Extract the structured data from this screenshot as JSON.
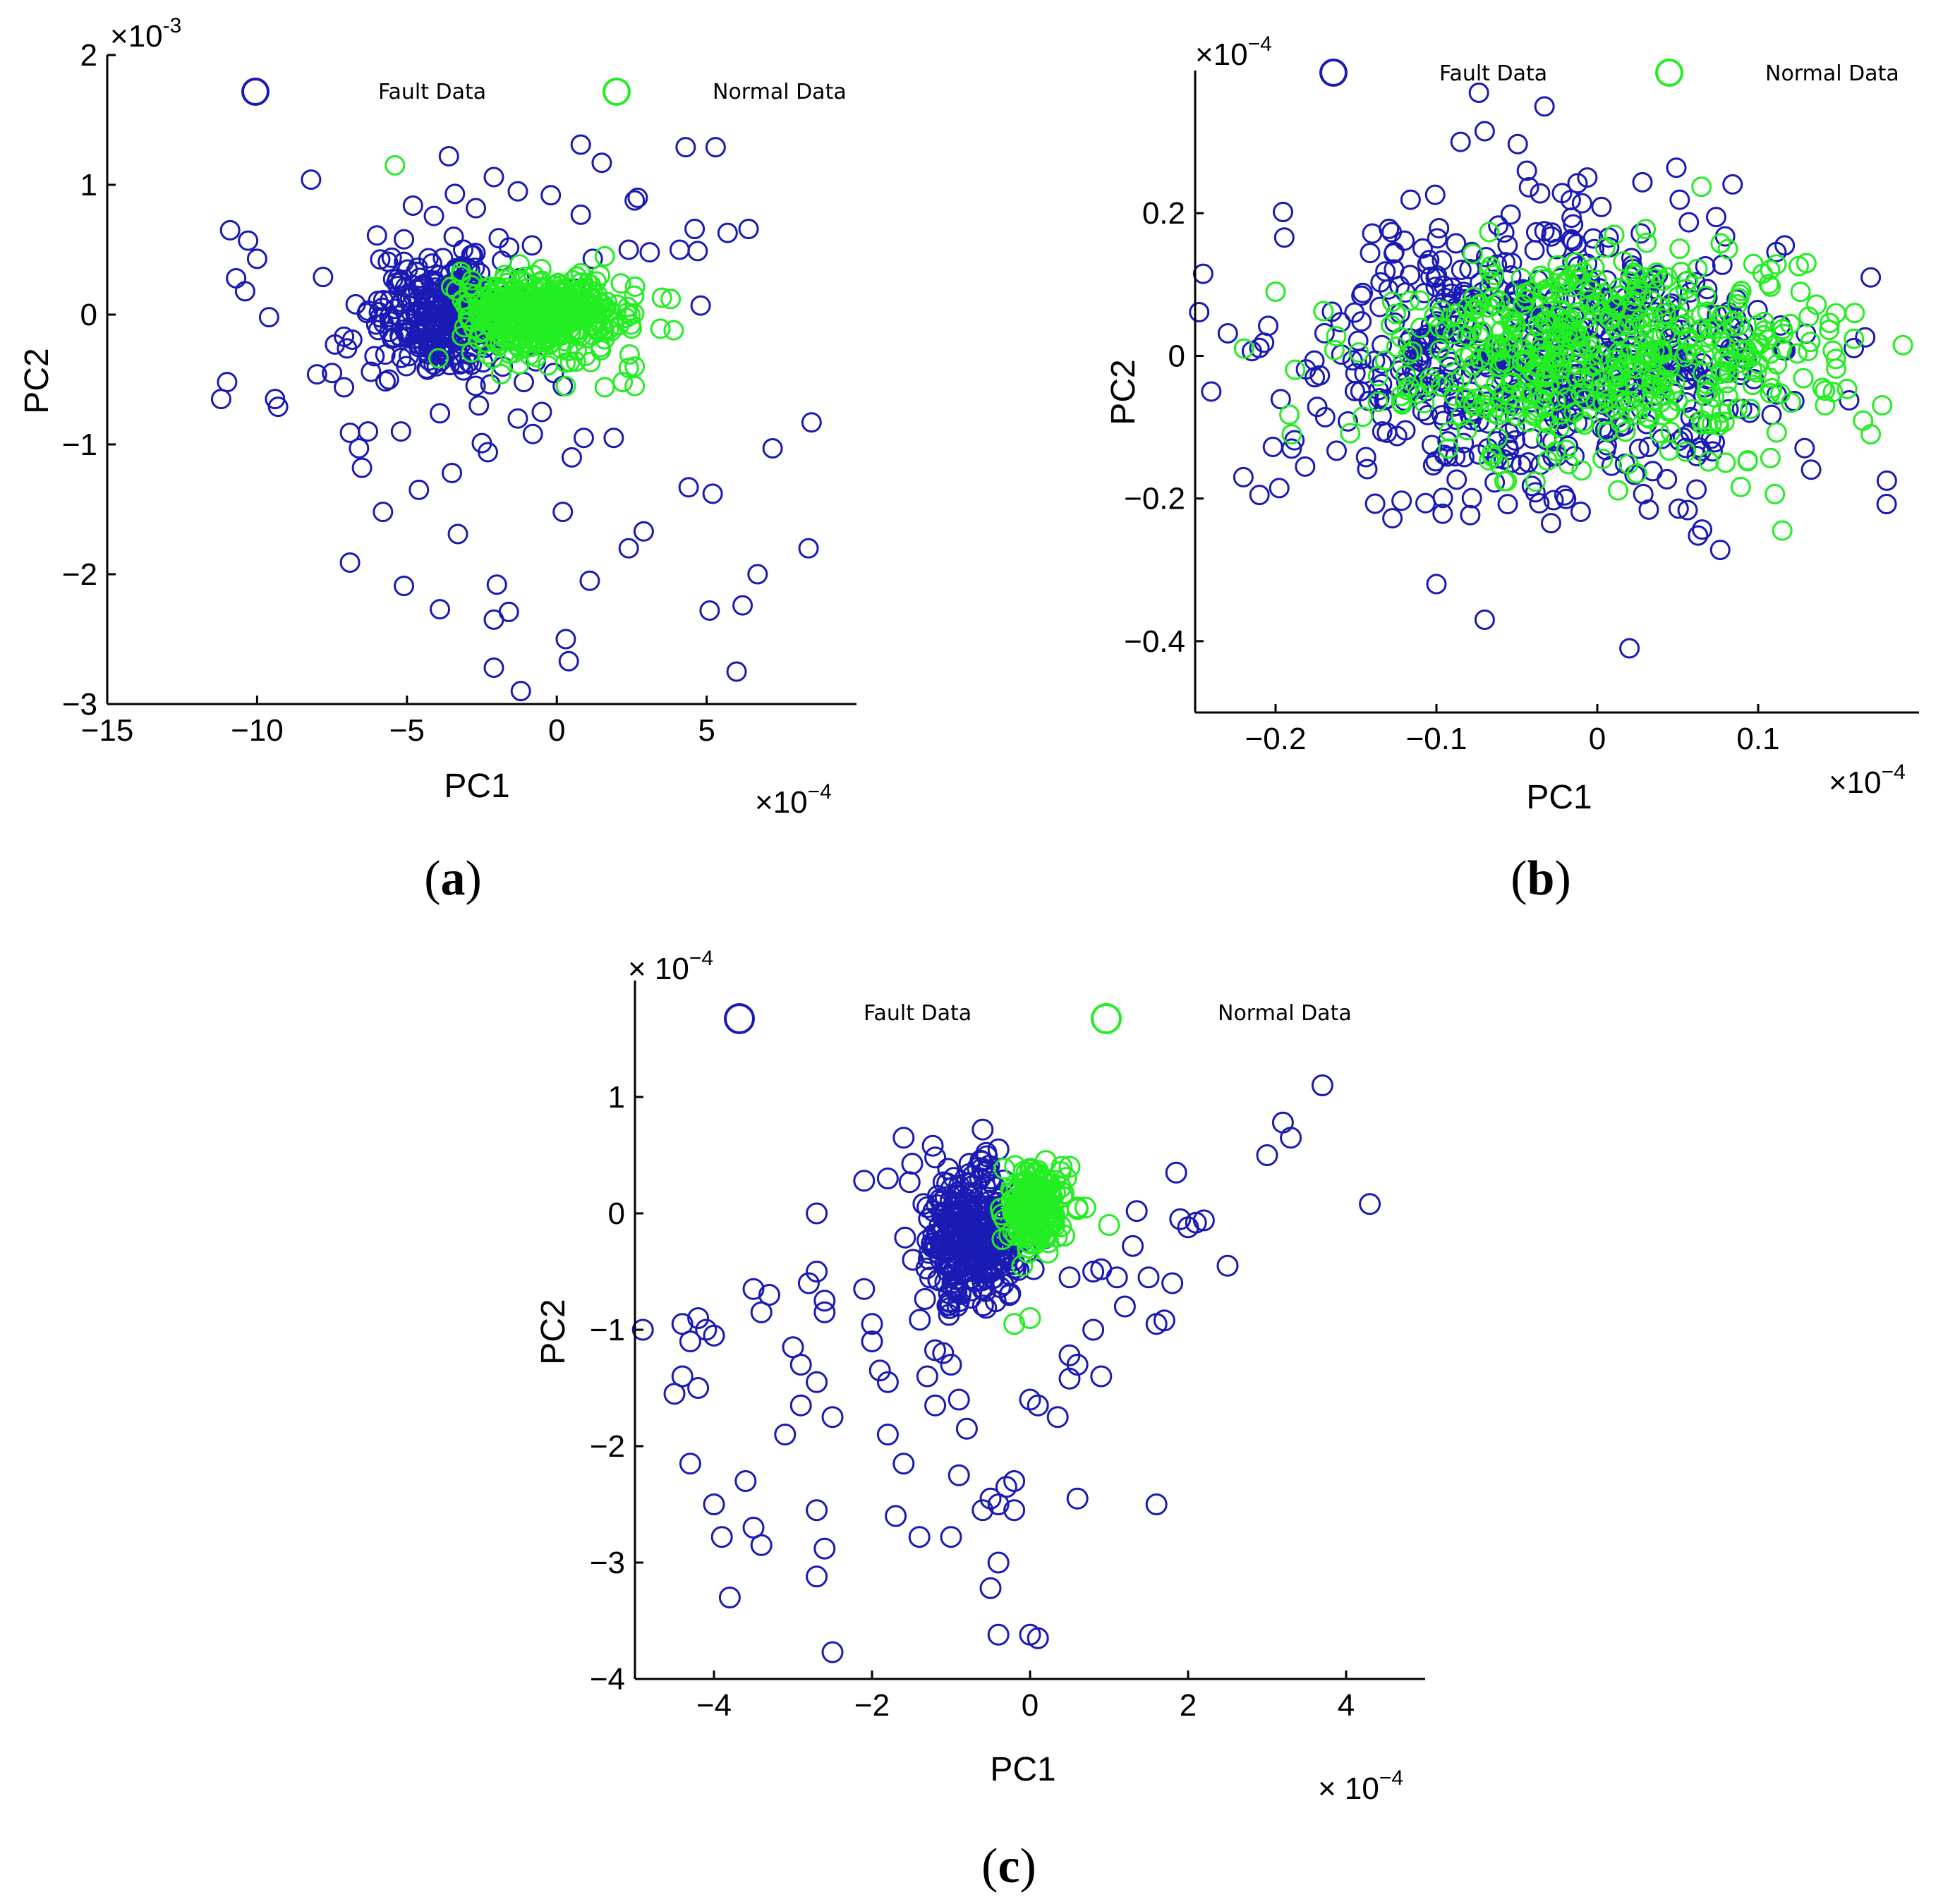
{
  "chart_data": [
    {
      "id": "a",
      "type": "scatter",
      "caption": "a",
      "xlabel": "PC1",
      "ylabel": "PC2",
      "x_multiplier": "×10",
      "x_exp": "−4",
      "y_multiplier": "×10",
      "y_exp": "-3",
      "xlim": [
        -15,
        10
      ],
      "ylim": [
        -3,
        2
      ],
      "xticks": [
        -15,
        -10,
        -5,
        0,
        5
      ],
      "yticks": [
        -3,
        -2,
        -1,
        0,
        1,
        2
      ],
      "legend_position": "top",
      "series": [
        {
          "name": "Fault Data",
          "color": "#1a1ab4",
          "cluster_center": [
            -3.8,
            0
          ],
          "cluster_spread": [
            1.1,
            0.22
          ],
          "cluster_count": 300,
          "outliers": [
            [
              -10.9,
              0.65
            ],
            [
              -10.3,
              0.57
            ],
            [
              -10.0,
              0.43
            ],
            [
              -10.7,
              0.28
            ],
            [
              -10.4,
              0.18
            ],
            [
              -9.6,
              -0.02
            ],
            [
              -11.2,
              -0.65
            ],
            [
              -11.0,
              -0.52
            ],
            [
              -9.4,
              -0.65
            ],
            [
              -9.3,
              -0.71
            ],
            [
              -8.2,
              1.04
            ],
            [
              -7.8,
              0.29
            ],
            [
              -7.4,
              -0.23
            ],
            [
              -7.0,
              -0.26
            ],
            [
              -8.0,
              -0.46
            ],
            [
              -7.5,
              -0.45
            ],
            [
              -7.1,
              -0.17
            ],
            [
              -6.9,
              -0.91
            ],
            [
              -6.6,
              -1.03
            ],
            [
              -6.5,
              -1.18
            ],
            [
              -7.1,
              -0.56
            ],
            [
              -6.3,
              -0.9
            ],
            [
              -6.2,
              -0.44
            ],
            [
              -6.0,
              0.61
            ],
            [
              -5.8,
              -1.52
            ],
            [
              -5.3,
              0.22
            ],
            [
              -5.1,
              0.58
            ],
            [
              -4.8,
              0.84
            ],
            [
              -4.7,
              0.33
            ],
            [
              -4.6,
              -0.23
            ],
            [
              -4.6,
              -1.35
            ],
            [
              -5.6,
              -0.5
            ],
            [
              -5.2,
              -0.9
            ],
            [
              -4.1,
              0.76
            ],
            [
              -3.9,
              -0.76
            ],
            [
              -3.6,
              1.22
            ],
            [
              -3.4,
              0.93
            ],
            [
              -3.5,
              -1.22
            ],
            [
              -3.3,
              -1.69
            ],
            [
              -3.9,
              -2.27
            ],
            [
              -5.1,
              -2.09
            ],
            [
              -6.9,
              -1.91
            ],
            [
              -2.7,
              0.82
            ],
            [
              -2.6,
              -0.7
            ],
            [
              -2.5,
              -0.99
            ],
            [
              -2.3,
              -1.06
            ],
            [
              -2.1,
              1.06
            ],
            [
              -2.0,
              -2.08
            ],
            [
              -2.1,
              -2.35
            ],
            [
              -1.6,
              -2.29
            ],
            [
              -1.8,
              -0.4
            ],
            [
              -1.3,
              -0.8
            ],
            [
              -1.1,
              -0.52
            ],
            [
              -1.3,
              0.95
            ],
            [
              -0.8,
              -0.92
            ],
            [
              -0.5,
              -0.75
            ],
            [
              -0.4,
              0.1
            ],
            [
              -0.2,
              0.92
            ],
            [
              0.2,
              -0.55
            ],
            [
              0.2,
              -1.52
            ],
            [
              0.5,
              -1.1
            ],
            [
              0.6,
              0.2
            ],
            [
              0.8,
              1.31
            ],
            [
              0.8,
              0.77
            ],
            [
              0.9,
              -0.95
            ],
            [
              1.1,
              -2.05
            ],
            [
              1.5,
              1.17
            ],
            [
              1.2,
              0.43
            ],
            [
              1.9,
              -0.95
            ],
            [
              2.4,
              0.5
            ],
            [
              2.6,
              0.88
            ],
            [
              2.7,
              0.9
            ],
            [
              2.4,
              -1.8
            ],
            [
              2.9,
              -1.67
            ],
            [
              3.1,
              0.48
            ],
            [
              4.1,
              0.5
            ],
            [
              4.3,
              1.29
            ],
            [
              4.6,
              0.66
            ],
            [
              4.7,
              0.49
            ],
            [
              4.8,
              0.07
            ],
            [
              4.4,
              -1.33
            ],
            [
              5.3,
              1.29
            ],
            [
              5.2,
              -1.38
            ],
            [
              5.7,
              0.63
            ],
            [
              6.4,
              0.66
            ],
            [
              5.1,
              -2.28
            ],
            [
              6.2,
              -2.24
            ],
            [
              6.7,
              -2.0
            ],
            [
              6.0,
              -2.75
            ],
            [
              5.9,
              -3.04
            ],
            [
              7.2,
              -1.03
            ],
            [
              8.5,
              -0.83
            ],
            [
              8.4,
              -1.8
            ],
            [
              -2.1,
              -2.72
            ],
            [
              -1.2,
              -2.9
            ],
            [
              0.3,
              -2.5
            ],
            [
              0.4,
              -2.67
            ],
            [
              -1.7,
              0.15
            ],
            [
              -0.7,
              -0.36
            ],
            [
              -0.1,
              -0.45
            ]
          ]
        },
        {
          "name": "Normal Data",
          "color": "#22ee22",
          "cluster_center": [
            -0.5,
            0.0
          ],
          "cluster_spread": [
            1.35,
            0.15
          ],
          "cluster_count": 420,
          "outliers": [
            [
              -5.4,
              1.15
            ],
            [
              2.4,
              -0.41
            ],
            [
              2.6,
              -0.4
            ],
            [
              3.8,
              0.12
            ],
            [
              3.9,
              -0.12
            ],
            [
              2.2,
              -0.52
            ],
            [
              1.6,
              -0.56
            ],
            [
              2.6,
              -0.55
            ],
            [
              0.3,
              -0.55
            ],
            [
              -3.2,
              0.33
            ],
            [
              1.6,
              0.45
            ]
          ]
        }
      ]
    },
    {
      "id": "b",
      "type": "scatter",
      "caption": "b",
      "xlabel": "PC1",
      "ylabel": "PC2",
      "x_multiplier": "×10",
      "x_exp": "−4",
      "y_multiplier": "×10",
      "y_exp": "−4",
      "xlim": [
        -0.25,
        0.2
      ],
      "ylim": [
        -0.5,
        0.4
      ],
      "xticks": [
        -0.2,
        -0.1,
        0,
        0.1
      ],
      "yticks": [
        -0.4,
        -0.2,
        0,
        0.2
      ],
      "legend_position": "top",
      "series": [
        {
          "name": "Fault Data",
          "color": "#1a1ab4",
          "cluster_center": [
            -0.04,
            0.0
          ],
          "cluster_spread": [
            0.075,
            0.1
          ],
          "cluster_count": 620,
          "outliers": [
            [
              -0.245,
              0.115
            ],
            [
              -0.24,
              -0.05
            ],
            [
              -0.22,
              -0.17
            ],
            [
              -0.21,
              -0.195
            ],
            [
              -0.19,
              -0.13
            ],
            [
              -0.085,
              0.3
            ],
            [
              -0.07,
              0.315
            ],
            [
              0.02,
              -0.41
            ],
            [
              -0.1,
              -0.32
            ],
            [
              -0.07,
              -0.37
            ],
            [
              0.17,
              0.11
            ],
            [
              0.18,
              -0.175
            ]
          ]
        },
        {
          "name": "Normal Data",
          "color": "#22ee22",
          "cluster_center": [
            0.0,
            0.0
          ],
          "cluster_spread": [
            0.07,
            0.07
          ],
          "cluster_count": 520,
          "outliers": [
            [
              -0.2,
              0.09
            ],
            [
              -0.19,
              -0.11
            ],
            [
              0.19,
              0.015
            ],
            [
              0.17,
              -0.11
            ],
            [
              0.16,
              0.06
            ],
            [
              0.14,
              -0.045
            ],
            [
              0.115,
              -0.245
            ],
            [
              0.13,
              0.13
            ]
          ]
        }
      ]
    },
    {
      "id": "c",
      "type": "scatter",
      "caption": "c",
      "xlabel": "PC1",
      "ylabel": "PC2",
      "x_multiplier": "× 10",
      "x_exp": "−4",
      "y_multiplier": "× 10",
      "y_exp": "−4",
      "xlim": [
        -5,
        5
      ],
      "ylim": [
        -4,
        2
      ],
      "xticks": [
        -4,
        -2,
        0,
        2,
        4
      ],
      "yticks": [
        -4,
        -3,
        -2,
        -1,
        0,
        1
      ],
      "legend_position": "top",
      "series": [
        {
          "name": "Fault Data",
          "color": "#1a1ab4",
          "cluster_center": [
            -0.75,
            -0.2
          ],
          "cluster_spread": [
            0.3,
            0.28
          ],
          "cluster_count": 320,
          "outliers": [
            [
              -4.9,
              -1.0
            ],
            [
              -4.4,
              -0.95
            ],
            [
              -4.2,
              -0.9
            ],
            [
              -4.3,
              -1.1
            ],
            [
              -4.1,
              -1.0
            ],
            [
              -4.0,
              -1.05
            ],
            [
              -4.4,
              -1.4
            ],
            [
              -4.5,
              -1.55
            ],
            [
              -4.2,
              -1.5
            ],
            [
              -4.3,
              -2.15
            ],
            [
              -4.0,
              -2.5
            ],
            [
              -3.9,
              -2.78
            ],
            [
              -3.6,
              -2.3
            ],
            [
              -3.5,
              -2.7
            ],
            [
              -3.8,
              -3.3
            ],
            [
              -3.4,
              -2.85
            ],
            [
              -3.5,
              -0.65
            ],
            [
              -3.4,
              -0.85
            ],
            [
              -3.3,
              -0.7
            ],
            [
              -3.0,
              -1.15
            ],
            [
              -2.9,
              -1.3
            ],
            [
              -2.7,
              -1.45
            ],
            [
              -3.1,
              -1.9
            ],
            [
              -2.9,
              -1.65
            ],
            [
              -2.8,
              -0.6
            ],
            [
              -2.7,
              -0.5
            ],
            [
              -2.6,
              -0.75
            ],
            [
              -2.6,
              -0.85
            ],
            [
              -2.5,
              -1.75
            ],
            [
              -2.7,
              -2.55
            ],
            [
              -2.6,
              -2.88
            ],
            [
              -2.7,
              -3.12
            ],
            [
              -2.5,
              -3.77
            ],
            [
              -2.7,
              0.0
            ],
            [
              -2.1,
              -0.65
            ],
            [
              -2.0,
              -0.95
            ],
            [
              -2.0,
              -1.1
            ],
            [
              -1.8,
              -1.45
            ],
            [
              -1.9,
              -1.35
            ],
            [
              -1.8,
              -1.9
            ],
            [
              -1.7,
              -2.6
            ],
            [
              -1.6,
              -2.15
            ],
            [
              -1.4,
              -2.78
            ],
            [
              -1.3,
              -1.4
            ],
            [
              -1.2,
              -1.65
            ],
            [
              -1.0,
              -1.3
            ],
            [
              -1.1,
              -1.2
            ],
            [
              -0.9,
              -1.6
            ],
            [
              -0.8,
              -1.85
            ],
            [
              -0.9,
              -2.25
            ],
            [
              -0.6,
              -2.55
            ],
            [
              -0.5,
              -2.45
            ],
            [
              -0.4,
              -2.5
            ],
            [
              -0.3,
              -2.35
            ],
            [
              -0.2,
              -2.55
            ],
            [
              -0.4,
              -3.0
            ],
            [
              -0.5,
              -3.22
            ],
            [
              -0.4,
              -3.62
            ],
            [
              0.0,
              -3.62
            ],
            [
              0.1,
              -3.65
            ],
            [
              -1.0,
              -2.78
            ],
            [
              -2.1,
              0.28
            ],
            [
              -1.8,
              0.3
            ],
            [
              -1.6,
              0.65
            ],
            [
              -1.2,
              0.48
            ],
            [
              -0.6,
              0.72
            ],
            [
              -0.4,
              0.55
            ],
            [
              -0.5,
              0.3
            ],
            [
              0.0,
              -1.6
            ],
            [
              0.1,
              -1.65
            ],
            [
              0.35,
              -1.75
            ],
            [
              0.5,
              -1.22
            ],
            [
              0.6,
              -1.3
            ],
            [
              0.5,
              -1.42
            ],
            [
              0.8,
              -1.0
            ],
            [
              0.9,
              -1.4
            ],
            [
              0.5,
              -0.55
            ],
            [
              0.8,
              -0.5
            ],
            [
              0.9,
              -0.48
            ],
            [
              1.1,
              -0.55
            ],
            [
              1.2,
              -0.8
            ],
            [
              1.3,
              -0.28
            ],
            [
              1.5,
              -0.55
            ],
            [
              1.6,
              -0.95
            ],
            [
              1.7,
              -0.92
            ],
            [
              1.8,
              -0.6
            ],
            [
              1.9,
              -0.05
            ],
            [
              2.0,
              -0.12
            ],
            [
              2.1,
              -0.08
            ],
            [
              2.2,
              -0.06
            ],
            [
              2.5,
              -0.45
            ],
            [
              1.85,
              0.35
            ],
            [
              1.35,
              0.02
            ],
            [
              3.0,
              0.5
            ],
            [
              3.2,
              0.78
            ],
            [
              3.3,
              0.65
            ],
            [
              3.7,
              1.1
            ],
            [
              4.3,
              0.08
            ],
            [
              1.6,
              -2.5
            ],
            [
              0.6,
              -2.45
            ],
            [
              -0.2,
              -2.3
            ]
          ]
        },
        {
          "name": "Normal Data",
          "color": "#22ee22",
          "cluster_center": [
            0.05,
            0.05
          ],
          "cluster_spread": [
            0.18,
            0.16
          ],
          "cluster_count": 200,
          "outliers": [
            [
              0.4,
              0.4
            ],
            [
              0.5,
              0.4
            ],
            [
              0.6,
              0.05
            ],
            [
              0.7,
              0.05
            ],
            [
              1.0,
              -0.1
            ],
            [
              0.0,
              -0.9
            ],
            [
              -0.2,
              -0.95
            ],
            [
              -0.1,
              -0.45
            ],
            [
              0.2,
              0.45
            ]
          ]
        }
      ]
    }
  ]
}
